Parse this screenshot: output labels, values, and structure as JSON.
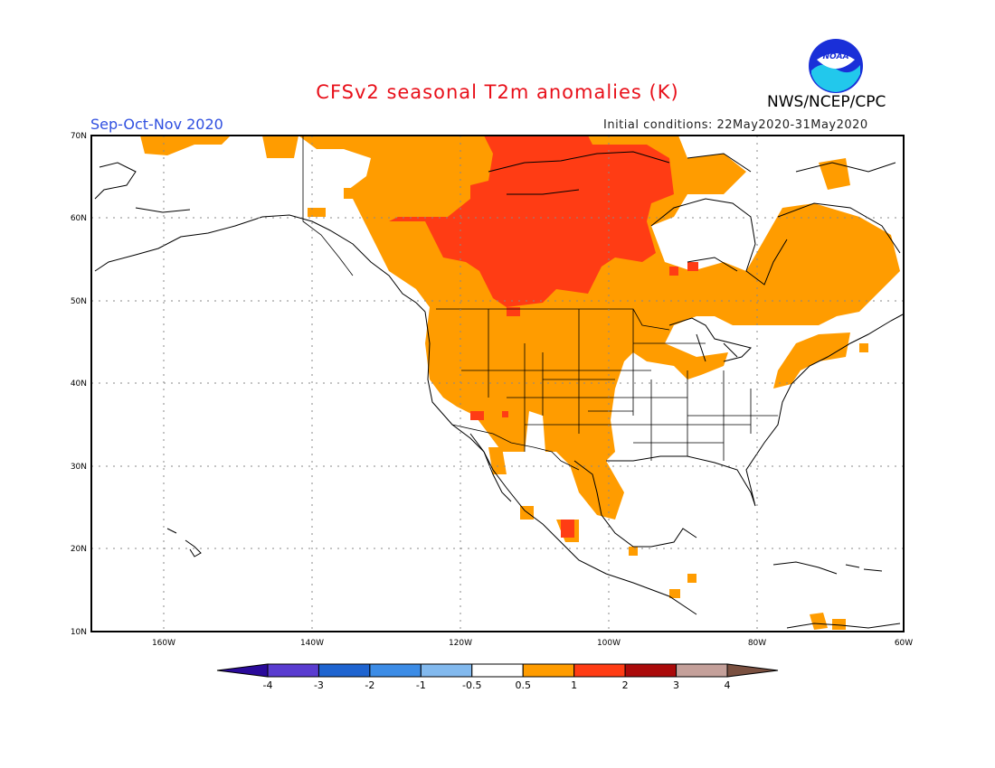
{
  "title": "CFSv2 seasonal T2m anomalies (K)",
  "season": "Sep-Oct-Nov 2020",
  "initial_conditions": "Initial conditions: 22May2020-31May2020",
  "agency": "NWS/NCEP/CPC",
  "logo_text": "NOAA",
  "map": {
    "region": "North America",
    "lon_range": [
      -172,
      -60
    ],
    "lat_range": [
      10,
      70
    ],
    "lat_labels": [
      "70N",
      "60N",
      "50N",
      "40N",
      "30N",
      "20N",
      "10N"
    ],
    "lon_labels": [
      "160W",
      "140W",
      "120W",
      "100W",
      "80W",
      "60W"
    ]
  },
  "colorbar": {
    "tick_labels": [
      "-4",
      "-3",
      "-2",
      "-1",
      "-0.5",
      "0.5",
      "1",
      "2",
      "3",
      "4"
    ],
    "colors": [
      "#2a0a9a",
      "#5a3cd0",
      "#1e64d0",
      "#3c8ce6",
      "#82b9ee",
      "#ffffff",
      "#ff9c00",
      "#ff3c14",
      "#aa0a0a",
      "#c4a09a",
      "#7a5040"
    ]
  }
}
